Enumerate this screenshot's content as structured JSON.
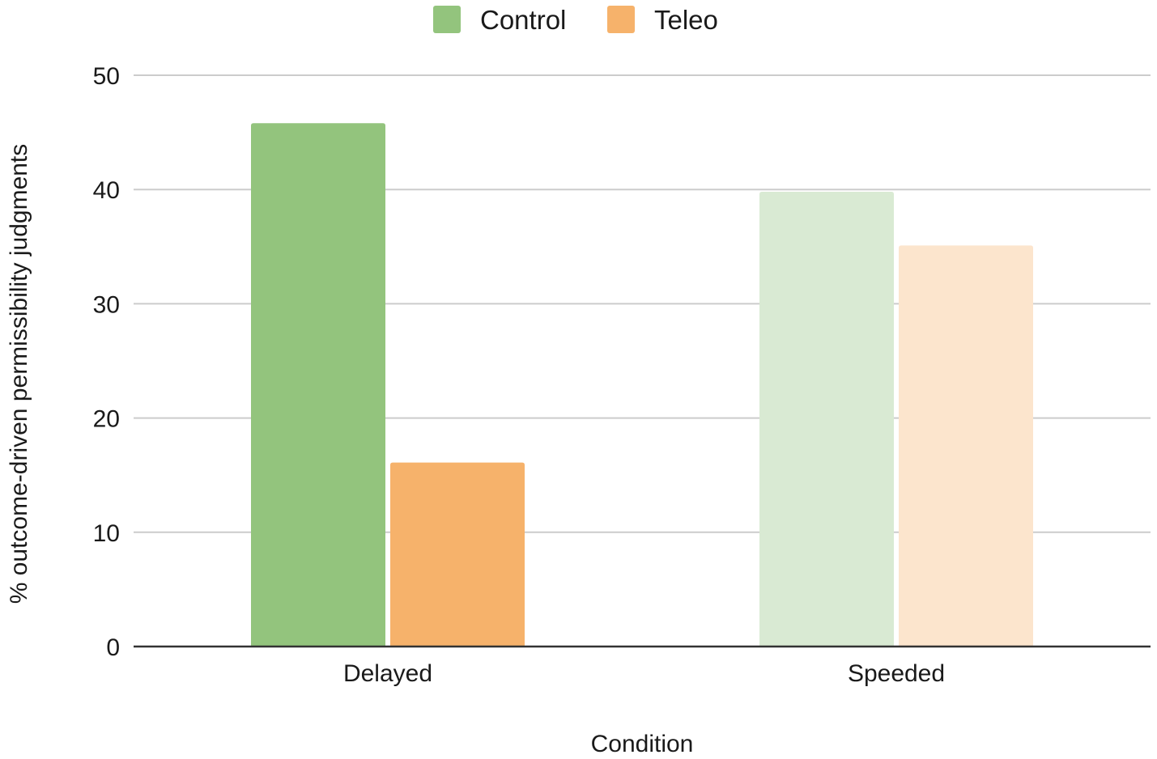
{
  "chart_data": {
    "type": "bar",
    "categories": [
      "Delayed",
      "Speeded"
    ],
    "series": [
      {
        "name": "Control",
        "values": [
          45.8,
          39.8
        ],
        "colors": [
          "#93c47d",
          "#d9ead3"
        ]
      },
      {
        "name": "Teleo",
        "values": [
          16.1,
          35.1
        ],
        "colors": [
          "#f6b26b",
          "#fce5cd"
        ]
      }
    ],
    "legend": {
      "position": "top-center",
      "items": [
        {
          "label": "Control",
          "color": "#93c47d"
        },
        {
          "label": "Teleo",
          "color": "#f6b26b"
        }
      ]
    },
    "xlabel": "Condition",
    "ylabel": "% outcome-driven permissibility judgments",
    "ylim": [
      0,
      50
    ],
    "yticks": [
      0,
      10,
      20,
      30,
      40,
      50
    ],
    "grid": true
  }
}
